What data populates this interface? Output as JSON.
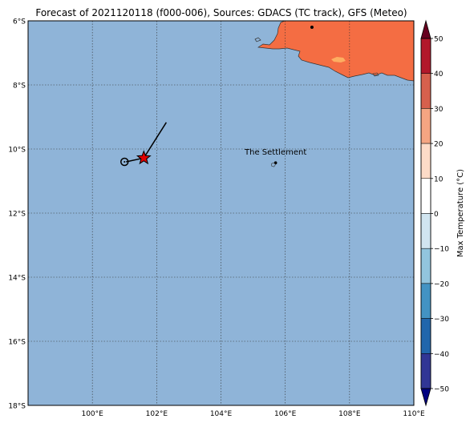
{
  "title": "Forecast of 2021120118 (f000-006), Sources: GDACS (TC track), GFS (Meteo)",
  "map": {
    "lat_ticks": [
      "6°S",
      "8°S",
      "10°S",
      "12°S",
      "14°S",
      "16°S",
      "18°S"
    ],
    "lon_ticks": [
      "100°E",
      "102°E",
      "104°E",
      "106°E",
      "108°E",
      "110°E"
    ],
    "lon_range": [
      98,
      110
    ],
    "lat_range": [
      -18,
      -6
    ],
    "ocean_color": "#8fb4d8",
    "land_color": "#f46d43",
    "hot_spot_color": "#fdae61",
    "place_label": "The Settlement",
    "place_lon": 105.7,
    "place_lat": -10.43,
    "city_dot_lon": 106.83,
    "city_dot_lat": -6.2,
    "storm_current": {
      "lon": 101.6,
      "lat": -10.28,
      "marker": "red-star"
    },
    "storm_previous": {
      "lon": 101.0,
      "lat": -10.4,
      "marker": "open-circle"
    },
    "motion_vector_end": {
      "lon": 102.3,
      "lat": -9.17
    }
  },
  "colorbar": {
    "label": "Max Temperature (°C)",
    "ticks": [
      "50",
      "40",
      "30",
      "20",
      "10",
      "0",
      "−10",
      "−20",
      "−30",
      "−40",
      "−50"
    ],
    "bin_colors": [
      "#67001f",
      "#b2182b",
      "#d6604d",
      "#f4a582",
      "#fddbc7",
      "#ffffff",
      "#d1e5f0",
      "#92c5de",
      "#4393c3",
      "#2166ac",
      "#313695"
    ],
    "top_extend_color": "#67001f",
    "bottom_extend_color": "#000080"
  }
}
